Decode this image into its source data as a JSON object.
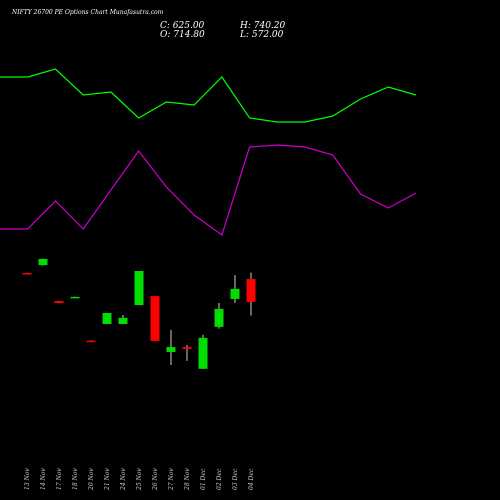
{
  "chart_data": [
    {
      "type": "candlestick",
      "title": "NIFTY 26700 PE Options Chart Munafasutra.com",
      "info": {
        "close": "C: 625.00",
        "open": "O: 714.80",
        "high": "H: 740.20",
        "low": "L: 572.00"
      },
      "categories": [
        "13 Nov",
        "14 Nov",
        "17 Nov",
        "18 Nov",
        "20 Nov",
        "21 Nov",
        "24 Nov",
        "25 Nov",
        "26 Nov",
        "27 Nov",
        "28 Nov",
        "01 Dec",
        "02 Dec",
        "03 Dec",
        "04 Dec"
      ],
      "open": [
        738,
        769,
        629,
        643,
        474,
        539,
        539,
        613,
        648,
        430,
        449,
        364,
        528,
        637,
        714.8
      ],
      "high": [
        739,
        794,
        630,
        646,
        475,
        582,
        574,
        746,
        648,
        516,
        457,
        497,
        621,
        730,
        740.2
      ],
      "low": [
        735,
        768,
        620,
        642,
        471,
        539,
        539,
        613,
        473,
        379,
        395,
        364,
        521,
        621,
        572
      ],
      "close": [
        736,
        793,
        621,
        645,
        472,
        582,
        563,
        746,
        473,
        449,
        442,
        485,
        598,
        676,
        625
      ],
      "up_color": "#00dd00",
      "down_color": "#ff0000",
      "ylim": [
        -148,
        1804
      ]
    },
    {
      "type": "line",
      "x": [
        0,
        1,
        2,
        3,
        4,
        5,
        6,
        7,
        8,
        9,
        10,
        11,
        12,
        13,
        14,
        15
      ],
      "xlim": [
        0,
        15
      ],
      "series": [
        {
          "color": "#00ff00",
          "values": [
            423,
            423,
            431,
            405,
            408,
            382,
            398,
            395,
            423,
            382,
            378,
            378,
            384,
            401,
            413,
            405
          ]
        },
        {
          "color": "#cc00cc",
          "values": [
            271,
            271,
            299,
            271,
            310,
            349,
            313,
            285,
            265,
            353,
            355,
            353,
            345,
            306,
            292,
            307
          ]
        }
      ],
      "ylim": [
        0,
        500
      ]
    }
  ]
}
